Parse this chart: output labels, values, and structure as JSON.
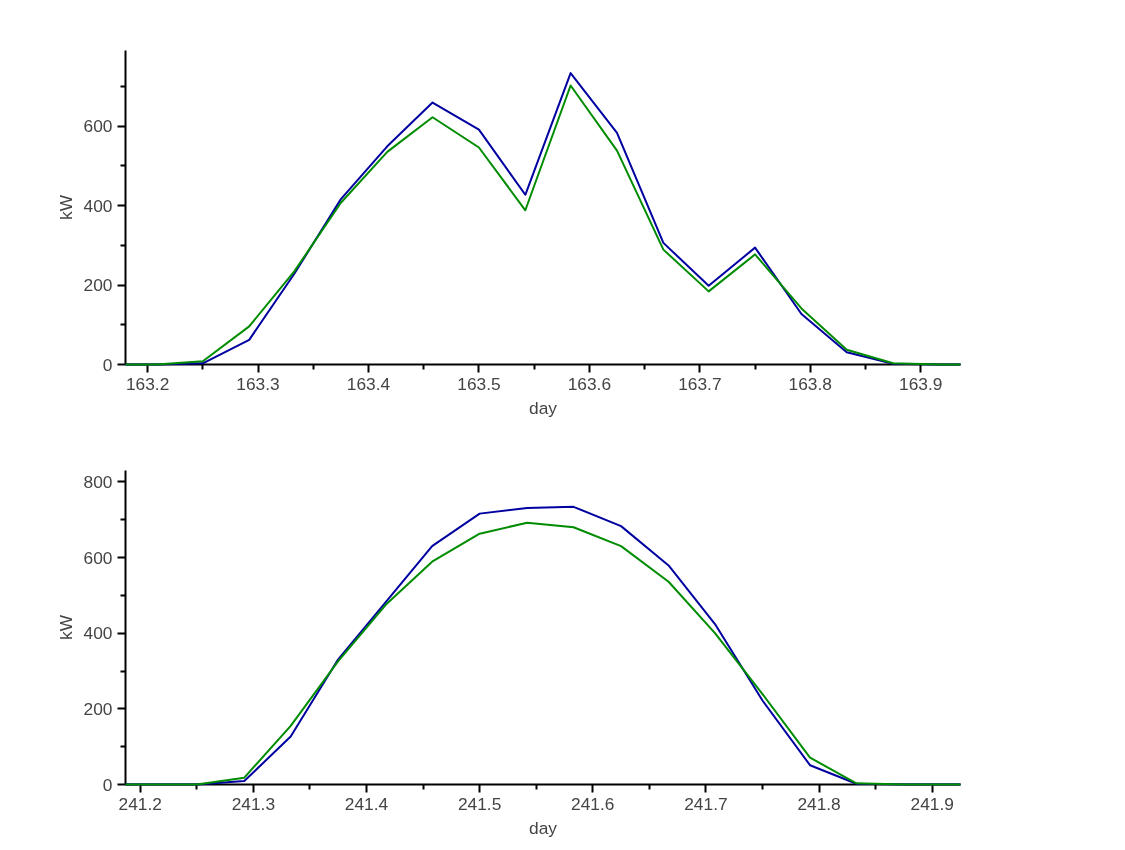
{
  "chart_data": [
    {
      "type": "line",
      "xlabel": "day",
      "ylabel": "kW",
      "xlim": [
        163.18,
        163.936
      ],
      "ylim": [
        0,
        790
      ],
      "xticks": [
        163.2,
        163.3,
        163.4,
        163.5,
        163.6,
        163.7,
        163.8,
        163.9
      ],
      "yticks": [
        0,
        200,
        400,
        600
      ],
      "grid": false,
      "marker": "none",
      "line_style": "solid",
      "x": [
        163.18,
        163.208,
        163.25,
        163.292,
        163.333,
        163.375,
        163.417,
        163.458,
        163.5,
        163.542,
        163.583,
        163.625,
        163.667,
        163.708,
        163.75,
        163.792,
        163.833,
        163.875,
        163.917,
        163.936
      ],
      "series": [
        {
          "color": "#0000a0",
          "values": [
            0,
            0,
            3,
            62,
            229,
            416,
            549,
            659,
            591,
            427,
            733,
            583,
            306,
            198,
            294,
            127,
            31,
            2,
            0,
            0
          ]
        },
        {
          "color": "#008c00",
          "values": [
            0,
            0,
            8,
            96,
            235,
            407,
            535,
            622,
            546,
            388,
            702,
            538,
            289,
            184,
            277,
            141,
            37,
            3,
            0,
            0
          ]
        }
      ]
    },
    {
      "type": "line",
      "xlabel": "day",
      "ylabel": "kW",
      "xlim": [
        241.187,
        241.925
      ],
      "ylim": [
        0,
        830
      ],
      "xticks": [
        241.2,
        241.3,
        241.4,
        241.5,
        241.6,
        241.7,
        241.8,
        241.9
      ],
      "yticks": [
        0,
        200,
        400,
        600,
        800
      ],
      "grid": false,
      "marker": "none",
      "line_style": "solid",
      "x": [
        241.187,
        241.208,
        241.25,
        241.292,
        241.333,
        241.375,
        241.417,
        241.458,
        241.5,
        241.542,
        241.583,
        241.625,
        241.667,
        241.708,
        241.75,
        241.792,
        241.833,
        241.875,
        241.925
      ],
      "series": [
        {
          "color": "#0000a0",
          "values": [
            0,
            0,
            0,
            9,
            127,
            331,
            482,
            630,
            716,
            731,
            734,
            683,
            579,
            424,
            222,
            51,
            2,
            0,
            0
          ]
        },
        {
          "color": "#008c00",
          "values": [
            0,
            0,
            0,
            18,
            155,
            326,
            475,
            589,
            663,
            692,
            680,
            630,
            536,
            400,
            239,
            71,
            3,
            0,
            0
          ]
        }
      ]
    }
  ]
}
